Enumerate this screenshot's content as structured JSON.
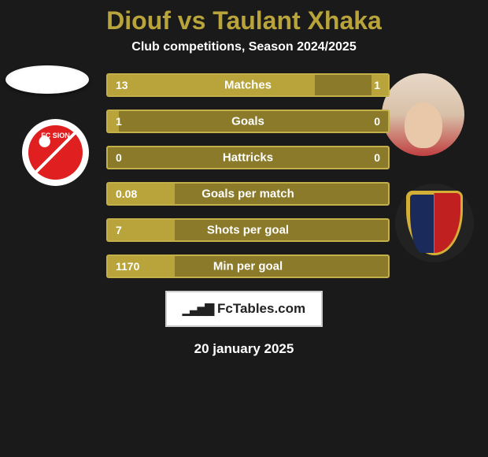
{
  "title": "Diouf vs Taulant Xhaka",
  "subtitle": "Club competitions, Season 2024/2025",
  "brand": "FcTables.com",
  "date": "20 january 2025",
  "players": {
    "left": {
      "name": "Diouf",
      "club": "FC Sion"
    },
    "right": {
      "name": "Taulant Xhaka",
      "club": "FC Basel"
    }
  },
  "colors": {
    "background": "#1a1a1a",
    "accent": "#b8a43a",
    "bar_track": "#8a7a2a",
    "bar_fill": "#b8a43a",
    "bar_border": "#c4b048",
    "text": "#ffffff"
  },
  "bars": [
    {
      "label": "Matches",
      "left": "13",
      "right": "1",
      "left_pct": 74,
      "right_pct": 6
    },
    {
      "label": "Goals",
      "left": "1",
      "right": "0",
      "left_pct": 4,
      "right_pct": 0
    },
    {
      "label": "Hattricks",
      "left": "0",
      "right": "0",
      "left_pct": 0,
      "right_pct": 0
    },
    {
      "label": "Goals per match",
      "left": "0.08",
      "right": "",
      "left_pct": 24,
      "right_pct": 0
    },
    {
      "label": "Shots per goal",
      "left": "7",
      "right": "",
      "left_pct": 24,
      "right_pct": 0
    },
    {
      "label": "Min per goal",
      "left": "1170",
      "right": "",
      "left_pct": 24,
      "right_pct": 0
    }
  ]
}
